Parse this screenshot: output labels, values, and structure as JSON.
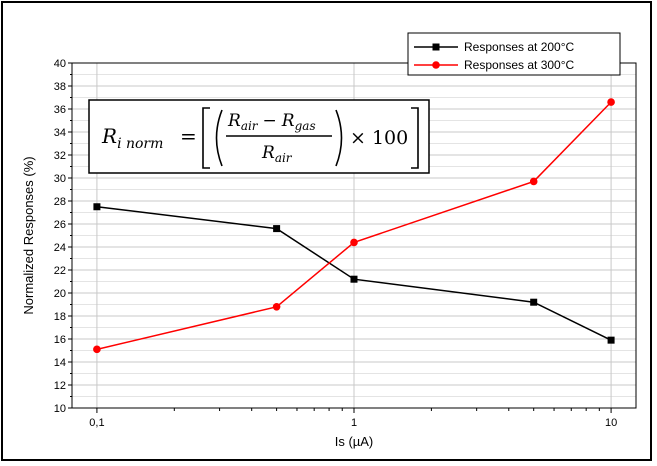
{
  "chart_data": {
    "type": "line",
    "xlabel": "Is (µA)",
    "ylabel": "Normalized Responses (%)",
    "x_scale": "log",
    "xlim": [
      0.08,
      12.5
    ],
    "ylim": [
      10,
      40
    ],
    "x_ticks": [
      0.1,
      1,
      10
    ],
    "x_tick_labels": [
      "0,1",
      "1",
      "10"
    ],
    "y_ticks": [
      10,
      12,
      14,
      16,
      18,
      20,
      22,
      24,
      26,
      28,
      30,
      32,
      34,
      36,
      38,
      40
    ],
    "grid": true,
    "legend_position": "top-right",
    "x": [
      0.1,
      0.5,
      1,
      5,
      10
    ],
    "series": [
      {
        "name": "Responses at 200°C",
        "color": "#000000",
        "marker": "square",
        "values": [
          27.5,
          25.6,
          21.2,
          19.2,
          15.9
        ]
      },
      {
        "name": "Responses at 300°C",
        "color": "#ff0000",
        "marker": "circle",
        "values": [
          15.1,
          18.8,
          24.4,
          29.7,
          36.6
        ]
      }
    ],
    "formula": {
      "lhs": "R",
      "lhs_sub": "i norm",
      "eq": "=",
      "num_a": "R",
      "num_a_sub": "air",
      "minus": "−",
      "num_b": "R",
      "num_b_sub": "gas",
      "den": "R",
      "den_sub": "air",
      "times": "× 100"
    }
  }
}
